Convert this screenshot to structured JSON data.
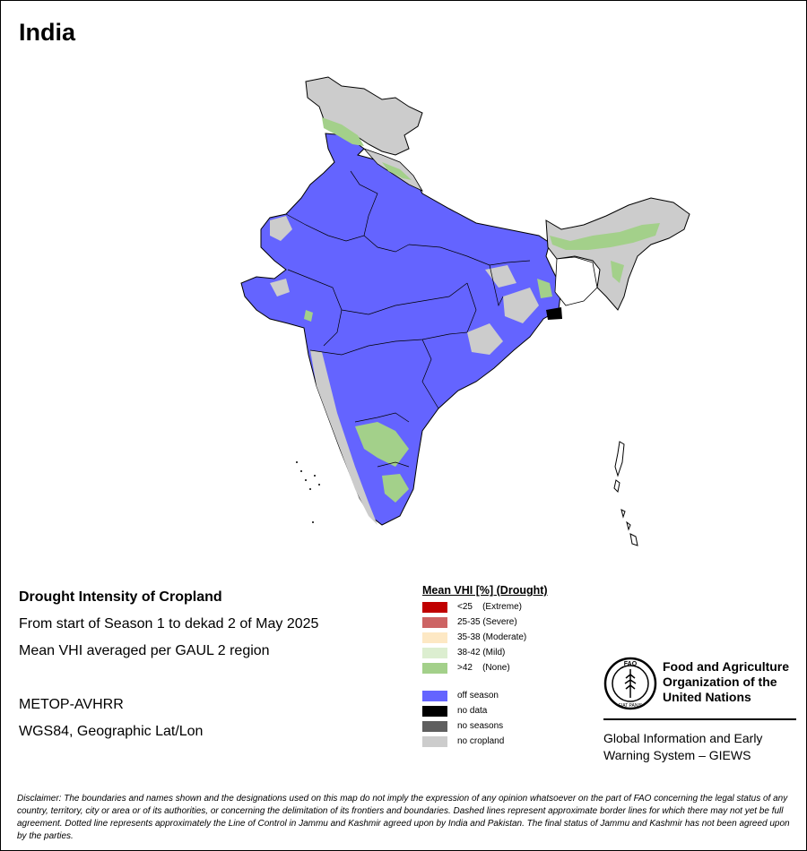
{
  "map": {
    "country": "India"
  },
  "info": {
    "title": "Drought Intensity of Cropland",
    "period": "From start of Season 1 to dekad 2 of May 2025",
    "method": "Mean VHI averaged per GAUL 2 region",
    "sensor": "METOP-AVHRR",
    "projection": "WGS84, Geographic Lat/Lon"
  },
  "legend": {
    "title": "Mean VHI [%] (Drought)",
    "classes": [
      {
        "label": "<25    (Extreme)",
        "color": "#c00000"
      },
      {
        "label": "25-35 (Severe)",
        "color": "#cd6464"
      },
      {
        "label": "35-38 (Moderate)",
        "color": "#fde8c4"
      },
      {
        "label": "38-42 (Mild)",
        "color": "#dceed0"
      },
      {
        "label": ">42    (None)",
        "color": "#a3d08a"
      }
    ],
    "other": [
      {
        "label": "off season",
        "color": "#6464ff"
      },
      {
        "label": "no data",
        "color": "#000000"
      },
      {
        "label": "no seasons",
        "color": "#5f5f5f"
      },
      {
        "label": "no cropland",
        "color": "#cccccc"
      }
    ]
  },
  "fao": {
    "name_line1": "Food and Agriculture",
    "name_line2": "Organization of the",
    "name_line3": "United Nations",
    "logo_text": "FAO",
    "logo_motto": "FIAT PANIS",
    "giews_line1": "Global Information and Early",
    "giews_line2": "Warning System – GIEWS"
  },
  "disclaimer": "Disclaimer: The boundaries and names shown and the designations used on this map do not imply the expression of any opinion whatsoever on the part of FAO concerning the legal status of any country, territory, city or area or of its authorities, or concerning the delimitation of its frontiers and boundaries. Dashed lines represent approximate border lines for which there may not yet be full agreement. Dotted line represents approximately the Line of Control in Jammu and Kashmir agreed upon by India and Pakistan. The final status of Jammu and Kashmir has not been agreed upon by the parties."
}
